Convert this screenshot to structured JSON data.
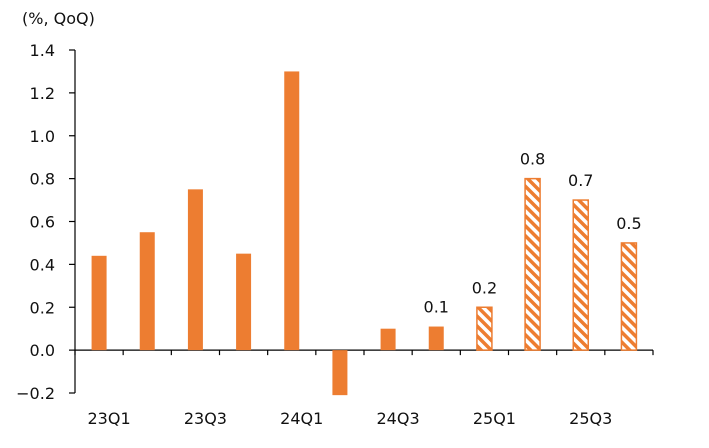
{
  "chart_data": {
    "type": "bar",
    "unit_label": "(%, QoQ)",
    "categories": [
      "23Q1",
      "23Q2",
      "23Q3",
      "23Q4",
      "24Q1",
      "24Q2",
      "24Q3",
      "24Q4",
      "25Q1",
      "25Q2",
      "25Q3",
      "25Q4"
    ],
    "x_tick_labels": [
      "23Q1",
      "",
      "23Q3",
      "",
      "24Q1",
      "",
      "24Q3",
      "",
      "25Q1",
      "",
      "25Q3",
      ""
    ],
    "values": [
      0.44,
      0.55,
      0.75,
      0.45,
      1.3,
      -0.21,
      0.1,
      0.11,
      0.2,
      0.8,
      0.7,
      0.5
    ],
    "forecast": [
      false,
      false,
      false,
      false,
      false,
      false,
      false,
      false,
      true,
      true,
      true,
      true
    ],
    "data_labels": [
      "",
      "",
      "",
      "",
      "",
      "",
      "",
      "0.1",
      "0.2",
      "0.8",
      "0.7",
      "0.5"
    ],
    "y_ticks": [
      1.4,
      1.2,
      1.0,
      0.8,
      0.6,
      0.4,
      0.2,
      0.0,
      -0.2
    ],
    "y_tick_labels": [
      "1.4",
      "1.2",
      "1.0",
      "0.8",
      "0.6",
      "0.4",
      "0.2",
      "0.0",
      "−0.2"
    ],
    "ylim": [
      -0.2,
      1.4
    ],
    "grid": false,
    "colors": {
      "bar": "#ED7D31",
      "forecast_fill": "#FFFFFF",
      "axis": "#000000"
    }
  }
}
